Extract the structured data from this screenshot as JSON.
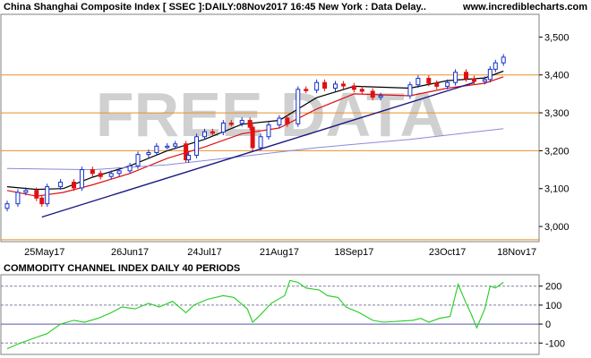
{
  "header": {
    "title": "China Shanghai Composite Index [ SSEC ]:DAILY:08Nov2017 16:45 New York : Data Delay..",
    "site": "www.incrediblecharts.com"
  },
  "watermark": "FREE DATA",
  "colors": {
    "up_candle": "#1530c8",
    "down_candle": "#e01010",
    "ma_short": "#000000",
    "ma_long": "#e01010",
    "ma_very_long": "#8a8ad8",
    "trendline": "#1a1a80",
    "horizontal_lines": "#e89028",
    "cci_line": "#22cc22",
    "watermark": "#d0d0d0"
  },
  "chart_data": [
    {
      "type": "candlestick",
      "title": "China Shanghai Composite Index [ SSEC ]:DAILY:08Nov2017 16:45 New York : Data Delay..",
      "x_ticks": [
        "25May17",
        "26Jun17",
        "24Jul17",
        "21Aug17",
        "18Sep17",
        "23Oct17",
        "18Nov17"
      ],
      "y_ticks": [
        3000,
        3100,
        3200,
        3300,
        3400,
        3500
      ],
      "y_tick_labels": [
        "3,000",
        "3,100",
        "3,200",
        "3,300",
        "3,400",
        "3,500"
      ],
      "ylim": [
        2960,
        3560
      ],
      "x_range": [
        "2017-05-11",
        "2017-11-24"
      ],
      "grid": false,
      "horizontal_levels": [
        2965,
        3200,
        3300,
        3400
      ],
      "trendline": {
        "from": [
          "2017-05-24",
          3025
        ],
        "to": [
          "2017-11-02",
          3380
        ]
      },
      "close_points": [
        [
          "2017-05-11",
          3060
        ],
        [
          "2017-05-15",
          3090
        ],
        [
          "2017-05-18",
          3095
        ],
        [
          "2017-05-22",
          3075
        ],
        [
          "2017-05-24",
          3060
        ],
        [
          "2017-05-26",
          3105
        ],
        [
          "2017-05-31",
          3117
        ],
        [
          "2017-06-05",
          3102
        ],
        [
          "2017-06-08",
          3150
        ],
        [
          "2017-06-12",
          3140
        ],
        [
          "2017-06-15",
          3132
        ],
        [
          "2017-06-19",
          3140
        ],
        [
          "2017-06-22",
          3147
        ],
        [
          "2017-06-26",
          3160
        ],
        [
          "2017-06-29",
          3190
        ],
        [
          "2017-07-03",
          3195
        ],
        [
          "2017-07-06",
          3212
        ],
        [
          "2017-07-10",
          3212
        ],
        [
          "2017-07-13",
          3218
        ],
        [
          "2017-07-17",
          3176
        ],
        [
          "2017-07-18",
          3188
        ],
        [
          "2017-07-21",
          3237
        ],
        [
          "2017-07-24",
          3250
        ],
        [
          "2017-07-27",
          3249
        ],
        [
          "2017-07-31",
          3273
        ],
        [
          "2017-08-03",
          3272
        ],
        [
          "2017-08-07",
          3280
        ],
        [
          "2017-08-10",
          3262
        ],
        [
          "2017-08-11",
          3208
        ],
        [
          "2017-08-14",
          3237
        ],
        [
          "2017-08-17",
          3268
        ],
        [
          "2017-08-21",
          3286
        ],
        [
          "2017-08-24",
          3271
        ],
        [
          "2017-08-28",
          3362
        ],
        [
          "2017-08-31",
          3360
        ],
        [
          "2017-09-04",
          3380
        ],
        [
          "2017-09-07",
          3365
        ],
        [
          "2017-09-11",
          3376
        ],
        [
          "2017-09-14",
          3371
        ],
        [
          "2017-09-18",
          3362
        ],
        [
          "2017-09-21",
          3357
        ],
        [
          "2017-09-25",
          3341
        ],
        [
          "2017-09-28",
          3345
        ],
        [
          "2017-10-09",
          3374
        ],
        [
          "2017-10-12",
          3391
        ],
        [
          "2017-10-16",
          3378
        ],
        [
          "2017-10-19",
          3370
        ],
        [
          "2017-10-23",
          3380
        ],
        [
          "2017-10-26",
          3407
        ],
        [
          "2017-10-30",
          3390
        ],
        [
          "2017-11-02",
          3383
        ],
        [
          "2017-11-06",
          3388
        ],
        [
          "2017-11-08",
          3415
        ],
        [
          "2017-11-10",
          3432
        ],
        [
          "2017-11-13",
          3447
        ]
      ],
      "moving_averages": [
        {
          "points": [
            [
              "2017-05-11",
              3105
            ],
            [
              "2017-05-22",
              3098
            ],
            [
              "2017-06-01",
              3100
            ],
            [
              "2017-06-12",
              3130
            ],
            [
              "2017-06-26",
              3160
            ],
            [
              "2017-07-10",
              3200
            ],
            [
              "2017-07-24",
              3230
            ],
            [
              "2017-08-07",
              3270
            ],
            [
              "2017-08-21",
              3280
            ],
            [
              "2017-09-04",
              3340
            ],
            [
              "2017-09-18",
              3370
            ],
            [
              "2017-10-09",
              3365
            ],
            [
              "2017-10-23",
              3385
            ],
            [
              "2017-11-06",
              3392
            ],
            [
              "2017-11-13",
              3410
            ]
          ]
        },
        {
          "points": [
            [
              "2017-05-11",
              3095
            ],
            [
              "2017-05-22",
              3080
            ],
            [
              "2017-06-01",
              3090
            ],
            [
              "2017-06-12",
              3110
            ],
            [
              "2017-06-26",
              3140
            ],
            [
              "2017-07-10",
              3180
            ],
            [
              "2017-07-24",
              3210
            ],
            [
              "2017-08-07",
              3245
            ],
            [
              "2017-08-21",
              3260
            ],
            [
              "2017-09-04",
              3310
            ],
            [
              "2017-09-18",
              3350
            ],
            [
              "2017-10-09",
              3345
            ],
            [
              "2017-10-23",
              3365
            ],
            [
              "2017-11-06",
              3378
            ],
            [
              "2017-11-13",
              3395
            ]
          ]
        },
        {
          "points": [
            [
              "2017-05-11",
              3153
            ],
            [
              "2017-06-12",
              3150
            ],
            [
              "2017-07-10",
              3163
            ],
            [
              "2017-08-07",
              3185
            ],
            [
              "2017-09-04",
              3208
            ],
            [
              "2017-10-09",
              3230
            ],
            [
              "2017-11-13",
              3258
            ]
          ]
        }
      ]
    },
    {
      "type": "line",
      "title": "COMMODITY CHANNEL INDEX DAILY 40 PERIODS",
      "y_ticks": [
        -100,
        0,
        100,
        200
      ],
      "y_tick_labels": [
        "-100",
        "0",
        "100",
        "200"
      ],
      "ylim": [
        -160,
        260
      ],
      "x_range": [
        "2017-05-11",
        "2017-11-24"
      ],
      "dashed_levels": [
        -100,
        100,
        200
      ],
      "solid_levels": [
        0
      ],
      "points": [
        [
          "2017-05-11",
          -130
        ],
        [
          "2017-05-16",
          -100
        ],
        [
          "2017-05-22",
          -70
        ],
        [
          "2017-05-26",
          -50
        ],
        [
          "2017-05-31",
          0
        ],
        [
          "2017-06-05",
          20
        ],
        [
          "2017-06-09",
          10
        ],
        [
          "2017-06-14",
          30
        ],
        [
          "2017-06-19",
          60
        ],
        [
          "2017-06-23",
          90
        ],
        [
          "2017-06-28",
          80
        ],
        [
          "2017-07-03",
          110
        ],
        [
          "2017-07-07",
          90
        ],
        [
          "2017-07-12",
          120
        ],
        [
          "2017-07-17",
          60
        ],
        [
          "2017-07-20",
          100
        ],
        [
          "2017-07-25",
          130
        ],
        [
          "2017-07-31",
          150
        ],
        [
          "2017-08-04",
          140
        ],
        [
          "2017-08-09",
          80
        ],
        [
          "2017-08-11",
          10
        ],
        [
          "2017-08-14",
          50
        ],
        [
          "2017-08-18",
          110
        ],
        [
          "2017-08-23",
          150
        ],
        [
          "2017-08-25",
          230
        ],
        [
          "2017-08-28",
          220
        ],
        [
          "2017-08-31",
          190
        ],
        [
          "2017-09-05",
          180
        ],
        [
          "2017-09-08",
          150
        ],
        [
          "2017-09-12",
          140
        ],
        [
          "2017-09-15",
          90
        ],
        [
          "2017-09-20",
          60
        ],
        [
          "2017-09-25",
          20
        ],
        [
          "2017-09-29",
          10
        ],
        [
          "2017-10-10",
          20
        ],
        [
          "2017-10-13",
          30
        ],
        [
          "2017-10-16",
          10
        ],
        [
          "2017-10-20",
          30
        ],
        [
          "2017-10-24",
          40
        ],
        [
          "2017-10-27",
          210
        ],
        [
          "2017-10-30",
          110
        ],
        [
          "2017-11-01",
          50
        ],
        [
          "2017-11-03",
          -20
        ],
        [
          "2017-11-06",
          80
        ],
        [
          "2017-11-08",
          200
        ],
        [
          "2017-11-10",
          190
        ],
        [
          "2017-11-13",
          220
        ]
      ]
    }
  ]
}
